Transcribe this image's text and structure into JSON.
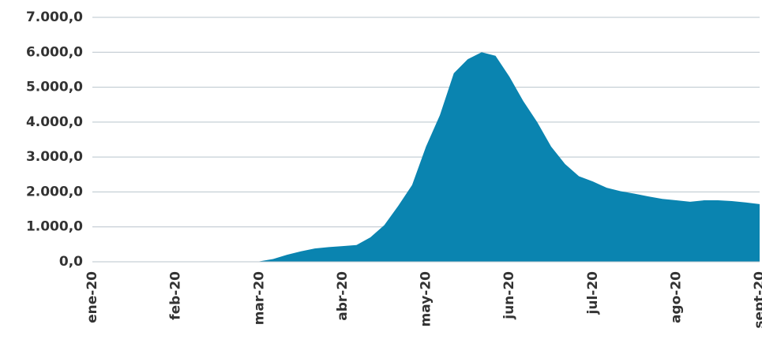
{
  "chart_data": {
    "type": "area",
    "categories": [
      "ene-20",
      null,
      null,
      null,
      null,
      null,
      "feb-20",
      null,
      null,
      null,
      null,
      null,
      "mar-20",
      null,
      null,
      null,
      null,
      null,
      "abr-20",
      null,
      null,
      null,
      null,
      null,
      "may-20",
      null,
      null,
      null,
      null,
      null,
      "jun-20",
      null,
      null,
      null,
      null,
      null,
      "jul-20",
      null,
      null,
      null,
      null,
      null,
      "ago-20",
      null,
      null,
      null,
      null,
      null,
      "sept-20"
    ],
    "values": [
      0,
      0,
      0,
      0,
      0,
      0,
      0,
      0,
      0,
      0,
      0,
      0,
      10,
      80,
      200,
      300,
      380,
      420,
      450,
      480,
      700,
      1050,
      1600,
      2200,
      3300,
      4200,
      5400,
      5800,
      6000,
      5900,
      5300,
      4600,
      4000,
      3300,
      2800,
      2450,
      2300,
      2120,
      2020,
      1950,
      1870,
      1800,
      1760,
      1720,
      1760,
      1760,
      1740,
      1700,
      1650
    ],
    "color": "#0a84b0",
    "ylim": [
      0,
      7000
    ],
    "yticks": [
      {
        "value": 0,
        "label": "0,0"
      },
      {
        "value": 1000,
        "label": "1.000,0"
      },
      {
        "value": 2000,
        "label": "2.000,0"
      },
      {
        "value": 3000,
        "label": "3.000,0"
      },
      {
        "value": 4000,
        "label": "4.000,0"
      },
      {
        "value": 5000,
        "label": "5.000,0"
      },
      {
        "value": 6000,
        "label": "6.000,0"
      },
      {
        "value": 7000,
        "label": "7.000,0"
      }
    ],
    "grid": true
  }
}
